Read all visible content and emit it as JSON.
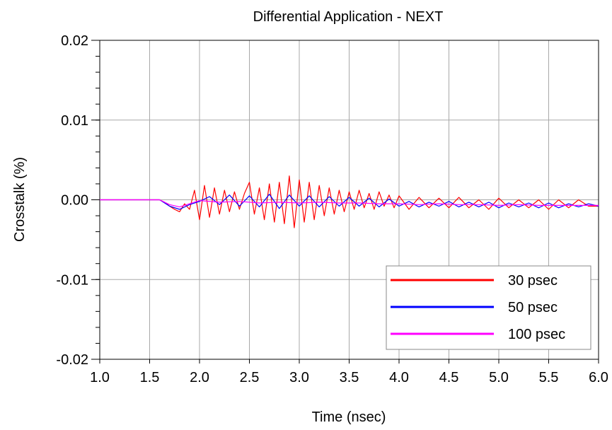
{
  "chart_data": {
    "type": "line",
    "title": "Differential Application - NEXT",
    "xlabel": "Time (nsec)",
    "ylabel": "Crosstalk (%)",
    "xlim": [
      1.0,
      6.0
    ],
    "ylim": [
      -0.02,
      0.02
    ],
    "x_ticks": [
      1.0,
      1.5,
      2.0,
      2.5,
      3.0,
      3.5,
      4.0,
      4.5,
      5.0,
      5.5,
      6.0
    ],
    "x_tick_labels": [
      "1.0",
      "1.5",
      "2.0",
      "2.5",
      "3.0",
      "3.5",
      "4.0",
      "4.5",
      "5.0",
      "5.5",
      "6.0"
    ],
    "y_ticks": [
      0.02,
      0.01,
      0.0,
      -0.01,
      -0.02
    ],
    "y_tick_labels": [
      "0.02",
      "0.01",
      "0.00",
      "-0.01",
      "-0.02"
    ],
    "y_minor_step": 0.002,
    "grid": true,
    "legend_position": "bottom-right",
    "series": [
      {
        "name": "30 psec",
        "color": "#ff0000",
        "x": [
          1.0,
          1.6,
          1.65,
          1.7,
          1.75,
          1.8,
          1.85,
          1.9,
          1.95,
          2.0,
          2.05,
          2.1,
          2.15,
          2.2,
          2.25,
          2.3,
          2.35,
          2.4,
          2.45,
          2.5,
          2.55,
          2.6,
          2.65,
          2.7,
          2.75,
          2.8,
          2.85,
          2.9,
          2.95,
          3.0,
          3.05,
          3.1,
          3.15,
          3.2,
          3.25,
          3.3,
          3.35,
          3.4,
          3.45,
          3.5,
          3.55,
          3.6,
          3.65,
          3.7,
          3.75,
          3.8,
          3.85,
          3.9,
          3.95,
          4.0,
          4.1,
          4.2,
          4.3,
          4.4,
          4.5,
          4.6,
          4.7,
          4.8,
          4.9,
          5.0,
          5.1,
          5.2,
          5.3,
          5.4,
          5.5,
          5.6,
          5.7,
          5.8,
          5.9,
          6.0
        ],
        "y": [
          0.0,
          0.0,
          -0.0003,
          -0.0008,
          -0.0012,
          -0.0015,
          -0.0005,
          -0.0012,
          0.0012,
          -0.0025,
          0.0018,
          -0.0022,
          0.0015,
          -0.0018,
          0.0012,
          -0.0015,
          0.001,
          -0.0012,
          0.0008,
          0.0022,
          -0.0018,
          0.0015,
          -0.0025,
          0.002,
          -0.0028,
          0.0022,
          -0.003,
          0.003,
          -0.0035,
          0.0025,
          -0.0028,
          0.0022,
          -0.0025,
          0.0018,
          -0.002,
          0.0015,
          -0.0018,
          0.0012,
          -0.0015,
          0.001,
          -0.0012,
          0.0012,
          -0.001,
          0.0008,
          -0.0012,
          0.001,
          -0.0008,
          0.0006,
          -0.001,
          0.0005,
          -0.0012,
          0.0003,
          -0.001,
          0.0002,
          -0.001,
          0.0003,
          -0.001,
          0.0,
          -0.0012,
          0.0002,
          -0.001,
          0.0,
          -0.001,
          0.0,
          -0.0012,
          0.0,
          -0.001,
          0.0,
          -0.0008,
          -0.0008
        ]
      },
      {
        "name": "50 psec",
        "color": "#0000ff",
        "x": [
          1.0,
          1.6,
          1.7,
          1.8,
          1.9,
          2.0,
          2.1,
          2.2,
          2.3,
          2.4,
          2.5,
          2.6,
          2.7,
          2.8,
          2.9,
          3.0,
          3.1,
          3.2,
          3.3,
          3.4,
          3.5,
          3.6,
          3.7,
          3.8,
          3.9,
          4.0,
          4.1,
          4.2,
          4.3,
          4.4,
          4.5,
          4.6,
          4.7,
          4.8,
          4.9,
          5.0,
          5.1,
          5.2,
          5.3,
          5.4,
          5.5,
          5.6,
          5.7,
          5.8,
          5.9,
          6.0
        ],
        "y": [
          0.0,
          0.0,
          -0.0008,
          -0.0012,
          -0.0006,
          -0.0002,
          0.0004,
          -0.0006,
          0.0006,
          -0.0008,
          0.0005,
          -0.0009,
          0.0007,
          -0.0011,
          0.0006,
          -0.0008,
          0.0005,
          -0.0009,
          0.0004,
          -0.0008,
          0.0003,
          -0.0008,
          0.0002,
          -0.0009,
          0.0001,
          -0.0008,
          -0.0002,
          -0.0009,
          -0.0003,
          -0.0008,
          -0.0002,
          -0.0009,
          -0.0003,
          -0.0009,
          -0.0003,
          -0.001,
          -0.0004,
          -0.0009,
          -0.0004,
          -0.001,
          -0.0004,
          -0.001,
          -0.0005,
          -0.0009,
          -0.0005,
          -0.0008
        ]
      },
      {
        "name": "100 psec",
        "color": "#ff00ff",
        "x": [
          1.0,
          1.6,
          1.7,
          1.8,
          1.9,
          2.0,
          2.2,
          2.4,
          2.6,
          2.8,
          3.0,
          3.2,
          3.4,
          3.6,
          3.8,
          4.0,
          4.2,
          4.4,
          4.6,
          4.8,
          5.0,
          5.2,
          5.4,
          5.6,
          5.8,
          6.0
        ],
        "y": [
          0.0,
          0.0,
          -0.0006,
          -0.0009,
          -0.0005,
          -0.0001,
          -0.0003,
          -0.0002,
          -0.0004,
          -0.0003,
          -0.0004,
          -0.0003,
          -0.0004,
          -0.0004,
          -0.0005,
          -0.0005,
          -0.0006,
          -0.0005,
          -0.0006,
          -0.0006,
          -0.0007,
          -0.0006,
          -0.0007,
          -0.0007,
          -0.0007,
          -0.0007
        ]
      }
    ]
  }
}
